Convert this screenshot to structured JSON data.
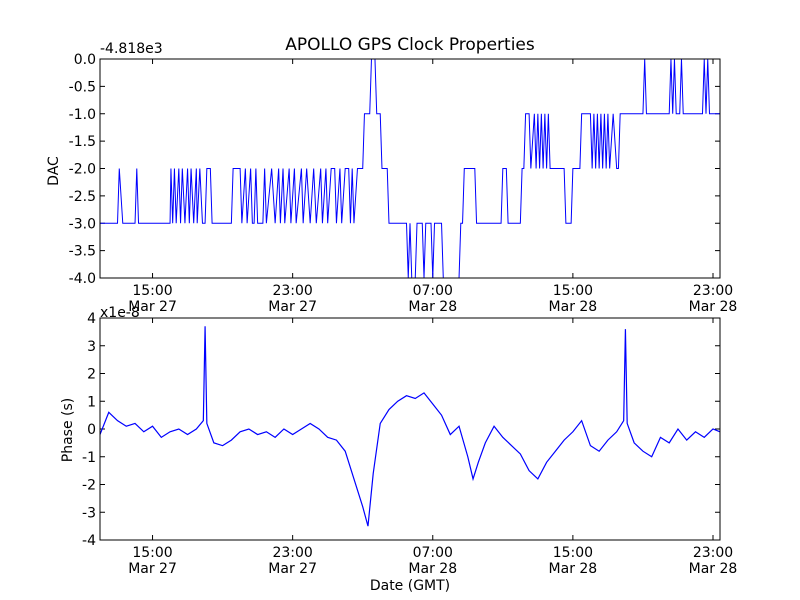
{
  "title": "APOLLO GPS Clock Properties",
  "colors": {
    "line": "#0000ff",
    "axes": "#000000",
    "background": "#ffffff"
  },
  "chart_data": [
    {
      "type": "line",
      "ylabel": "DAC",
      "offset_text": "-4.818e3",
      "ylim": [
        -4.0,
        0.0
      ],
      "yticks": [
        "0.0",
        "-0.5",
        "-1.0",
        "-1.5",
        "-2.0",
        "-2.5",
        "-3.0",
        "-3.5",
        "-4.0"
      ],
      "xticks": [
        {
          "t": 2,
          "time": "15:00",
          "date": "Mar 27"
        },
        {
          "t": 10,
          "time": "23:00",
          "date": "Mar 27"
        },
        {
          "t": 18,
          "time": "07:00",
          "date": "Mar 28"
        },
        {
          "t": 26,
          "time": "15:00",
          "date": "Mar 28"
        },
        {
          "t": 34,
          "time": "23:00",
          "date": "Mar 28"
        }
      ],
      "xlim": [
        -1.0,
        34.4
      ],
      "series": [
        {
          "values": [
            [
              -1.0,
              -3
            ],
            [
              0.0,
              -3
            ],
            [
              0.1,
              -2
            ],
            [
              0.3,
              -3
            ],
            [
              1.0,
              -3
            ],
            [
              1.1,
              -2
            ],
            [
              1.2,
              -3
            ],
            [
              3.0,
              -3
            ],
            [
              3.05,
              -2
            ],
            [
              3.15,
              -3
            ],
            [
              3.25,
              -2
            ],
            [
              3.35,
              -3
            ],
            [
              3.5,
              -2
            ],
            [
              3.6,
              -3
            ],
            [
              3.7,
              -2
            ],
            [
              3.85,
              -3
            ],
            [
              4.0,
              -2
            ],
            [
              4.1,
              -3
            ],
            [
              4.2,
              -2
            ],
            [
              4.35,
              -3
            ],
            [
              4.5,
              -2
            ],
            [
              4.55,
              -3
            ],
            [
              4.7,
              -2
            ],
            [
              4.85,
              -3
            ],
            [
              5.0,
              -3
            ],
            [
              5.1,
              -2
            ],
            [
              5.3,
              -2
            ],
            [
              5.4,
              -3
            ],
            [
              6.5,
              -3
            ],
            [
              6.6,
              -2
            ],
            [
              7.0,
              -2
            ],
            [
              7.1,
              -3
            ],
            [
              7.3,
              -2
            ],
            [
              7.4,
              -3
            ],
            [
              7.6,
              -2
            ],
            [
              7.7,
              -3
            ],
            [
              7.8,
              -3
            ],
            [
              7.9,
              -2
            ],
            [
              8.0,
              -3
            ],
            [
              8.3,
              -3
            ],
            [
              8.4,
              -2
            ],
            [
              8.5,
              -3
            ],
            [
              8.8,
              -2
            ],
            [
              9.0,
              -3
            ],
            [
              9.2,
              -2
            ],
            [
              9.3,
              -3
            ],
            [
              9.45,
              -2
            ],
            [
              9.55,
              -3
            ],
            [
              9.8,
              -2
            ],
            [
              9.9,
              -3
            ],
            [
              10.1,
              -2
            ],
            [
              10.2,
              -3
            ],
            [
              10.5,
              -2
            ],
            [
              10.6,
              -3
            ],
            [
              10.8,
              -2
            ],
            [
              11.0,
              -3
            ],
            [
              11.2,
              -2
            ],
            [
              11.35,
              -3
            ],
            [
              11.6,
              -2
            ],
            [
              11.7,
              -3
            ],
            [
              11.9,
              -2
            ],
            [
              12.0,
              -3
            ],
            [
              12.2,
              -2
            ],
            [
              12.4,
              -2
            ],
            [
              12.5,
              -3
            ],
            [
              12.7,
              -2
            ],
            [
              12.8,
              -3
            ],
            [
              13.0,
              -2
            ],
            [
              13.2,
              -2
            ],
            [
              13.3,
              -3
            ],
            [
              13.4,
              -2
            ],
            [
              13.5,
              -3
            ],
            [
              13.7,
              -2
            ],
            [
              14.0,
              -2
            ],
            [
              14.1,
              -1
            ],
            [
              14.4,
              -1
            ],
            [
              14.5,
              0
            ],
            [
              14.7,
              0
            ],
            [
              14.8,
              -1
            ],
            [
              15.0,
              -1
            ],
            [
              15.1,
              -2
            ],
            [
              15.4,
              -2
            ],
            [
              15.5,
              -3
            ],
            [
              16.0,
              -3
            ],
            [
              16.5,
              -3
            ],
            [
              16.6,
              -4
            ],
            [
              16.7,
              -3
            ],
            [
              16.8,
              -4
            ],
            [
              17.0,
              -4
            ],
            [
              17.1,
              -3
            ],
            [
              17.4,
              -3
            ],
            [
              17.5,
              -4
            ],
            [
              17.6,
              -3
            ],
            [
              17.9,
              -3
            ],
            [
              18.0,
              -4
            ],
            [
              18.1,
              -3
            ],
            [
              18.5,
              -3
            ],
            [
              18.6,
              -4
            ],
            [
              19.5,
              -4
            ],
            [
              19.6,
              -3
            ],
            [
              19.7,
              -3
            ],
            [
              19.8,
              -2
            ],
            [
              20.4,
              -2
            ],
            [
              20.5,
              -3
            ],
            [
              21.9,
              -3
            ],
            [
              22.0,
              -2
            ],
            [
              22.2,
              -2
            ],
            [
              22.3,
              -3
            ],
            [
              23.0,
              -3
            ],
            [
              23.1,
              -2
            ],
            [
              23.2,
              -2
            ],
            [
              23.3,
              -1
            ],
            [
              23.5,
              -1
            ],
            [
              23.6,
              -2
            ],
            [
              23.8,
              -1
            ],
            [
              23.9,
              -2
            ],
            [
              24.0,
              -1
            ],
            [
              24.1,
              -2
            ],
            [
              24.2,
              -1
            ],
            [
              24.3,
              -2
            ],
            [
              24.4,
              -1
            ],
            [
              24.5,
              -2
            ],
            [
              24.6,
              -1
            ],
            [
              24.7,
              -2
            ],
            [
              25.5,
              -2
            ],
            [
              25.6,
              -3
            ],
            [
              25.9,
              -3
            ],
            [
              26.0,
              -2
            ],
            [
              26.4,
              -2
            ],
            [
              26.5,
              -1
            ],
            [
              27.0,
              -1
            ],
            [
              27.1,
              -2
            ],
            [
              27.2,
              -1
            ],
            [
              27.3,
              -2
            ],
            [
              27.4,
              -1
            ],
            [
              27.5,
              -2
            ],
            [
              27.6,
              -1
            ],
            [
              27.7,
              -2
            ],
            [
              27.8,
              -1
            ],
            [
              27.9,
              -2
            ],
            [
              28.0,
              -1
            ],
            [
              28.1,
              -2
            ],
            [
              28.3,
              -1
            ],
            [
              28.5,
              -2
            ],
            [
              28.6,
              -2
            ],
            [
              28.7,
              -1
            ],
            [
              30.0,
              -1
            ],
            [
              30.1,
              0
            ],
            [
              30.2,
              -1
            ],
            [
              31.5,
              -1
            ],
            [
              31.6,
              0
            ],
            [
              31.7,
              -1
            ],
            [
              31.8,
              0
            ],
            [
              31.9,
              -1
            ],
            [
              32.1,
              -1
            ],
            [
              32.2,
              0
            ],
            [
              32.3,
              -1
            ],
            [
              33.4,
              -1
            ],
            [
              33.5,
              0
            ],
            [
              33.6,
              -1
            ],
            [
              33.7,
              0
            ],
            [
              33.8,
              -1
            ],
            [
              34.4,
              -1
            ]
          ]
        }
      ]
    },
    {
      "type": "line",
      "xlabel": "Date (GMT)",
      "ylabel": "Phase (s)",
      "offset_text": "x1e-8",
      "ylim": [
        -4,
        4
      ],
      "yticks": [
        "4",
        "3",
        "2",
        "1",
        "0",
        "-1",
        "-2",
        "-3",
        "-4"
      ],
      "xticks": [
        {
          "t": 2,
          "time": "15:00",
          "date": "Mar 27"
        },
        {
          "t": 10,
          "time": "23:00",
          "date": "Mar 27"
        },
        {
          "t": 18,
          "time": "07:00",
          "date": "Mar 28"
        },
        {
          "t": 26,
          "time": "15:00",
          "date": "Mar 28"
        },
        {
          "t": 34,
          "time": "23:00",
          "date": "Mar 28"
        }
      ],
      "xlim": [
        -1.0,
        34.4
      ],
      "series": [
        {
          "values": [
            [
              -1.0,
              -0.2
            ],
            [
              -0.5,
              0.6
            ],
            [
              0.0,
              0.3
            ],
            [
              0.5,
              0.1
            ],
            [
              1.0,
              0.2
            ],
            [
              1.5,
              -0.1
            ],
            [
              2.0,
              0.1
            ],
            [
              2.5,
              -0.3
            ],
            [
              3.0,
              -0.1
            ],
            [
              3.5,
              0.0
            ],
            [
              4.0,
              -0.2
            ],
            [
              4.5,
              0.0
            ],
            [
              4.9,
              0.3
            ],
            [
              5.0,
              3.7
            ],
            [
              5.1,
              0.2
            ],
            [
              5.5,
              -0.5
            ],
            [
              6.0,
              -0.6
            ],
            [
              6.5,
              -0.4
            ],
            [
              7.0,
              -0.1
            ],
            [
              7.5,
              0.0
            ],
            [
              8.0,
              -0.2
            ],
            [
              8.5,
              -0.1
            ],
            [
              9.0,
              -0.3
            ],
            [
              9.5,
              0.0
            ],
            [
              10.0,
              -0.2
            ],
            [
              10.5,
              0.0
            ],
            [
              11.0,
              0.2
            ],
            [
              11.5,
              0.0
            ],
            [
              12.0,
              -0.3
            ],
            [
              12.5,
              -0.4
            ],
            [
              13.0,
              -0.8
            ],
            [
              13.5,
              -1.8
            ],
            [
              14.0,
              -2.8
            ],
            [
              14.3,
              -3.5
            ],
            [
              14.6,
              -1.6
            ],
            [
              15.0,
              0.2
            ],
            [
              15.5,
              0.7
            ],
            [
              16.0,
              1.0
            ],
            [
              16.5,
              1.2
            ],
            [
              17.0,
              1.1
            ],
            [
              17.5,
              1.3
            ],
            [
              18.0,
              0.9
            ],
            [
              18.5,
              0.5
            ],
            [
              19.0,
              -0.2
            ],
            [
              19.5,
              0.1
            ],
            [
              20.0,
              -1.0
            ],
            [
              20.3,
              -1.8
            ],
            [
              20.6,
              -1.2
            ],
            [
              21.0,
              -0.5
            ],
            [
              21.5,
              0.1
            ],
            [
              22.0,
              -0.3
            ],
            [
              22.5,
              -0.6
            ],
            [
              23.0,
              -0.9
            ],
            [
              23.5,
              -1.5
            ],
            [
              24.0,
              -1.8
            ],
            [
              24.5,
              -1.2
            ],
            [
              25.0,
              -0.8
            ],
            [
              25.5,
              -0.4
            ],
            [
              26.0,
              -0.1
            ],
            [
              26.5,
              0.3
            ],
            [
              27.0,
              -0.6
            ],
            [
              27.5,
              -0.8
            ],
            [
              28.0,
              -0.4
            ],
            [
              28.5,
              -0.1
            ],
            [
              28.9,
              0.3
            ],
            [
              29.0,
              3.6
            ],
            [
              29.1,
              0.2
            ],
            [
              29.5,
              -0.5
            ],
            [
              30.0,
              -0.8
            ],
            [
              30.5,
              -1.0
            ],
            [
              31.0,
              -0.3
            ],
            [
              31.5,
              -0.5
            ],
            [
              32.0,
              0.0
            ],
            [
              32.5,
              -0.4
            ],
            [
              33.0,
              -0.1
            ],
            [
              33.5,
              -0.3
            ],
            [
              34.0,
              0.0
            ],
            [
              34.4,
              -0.1
            ]
          ]
        }
      ]
    }
  ]
}
